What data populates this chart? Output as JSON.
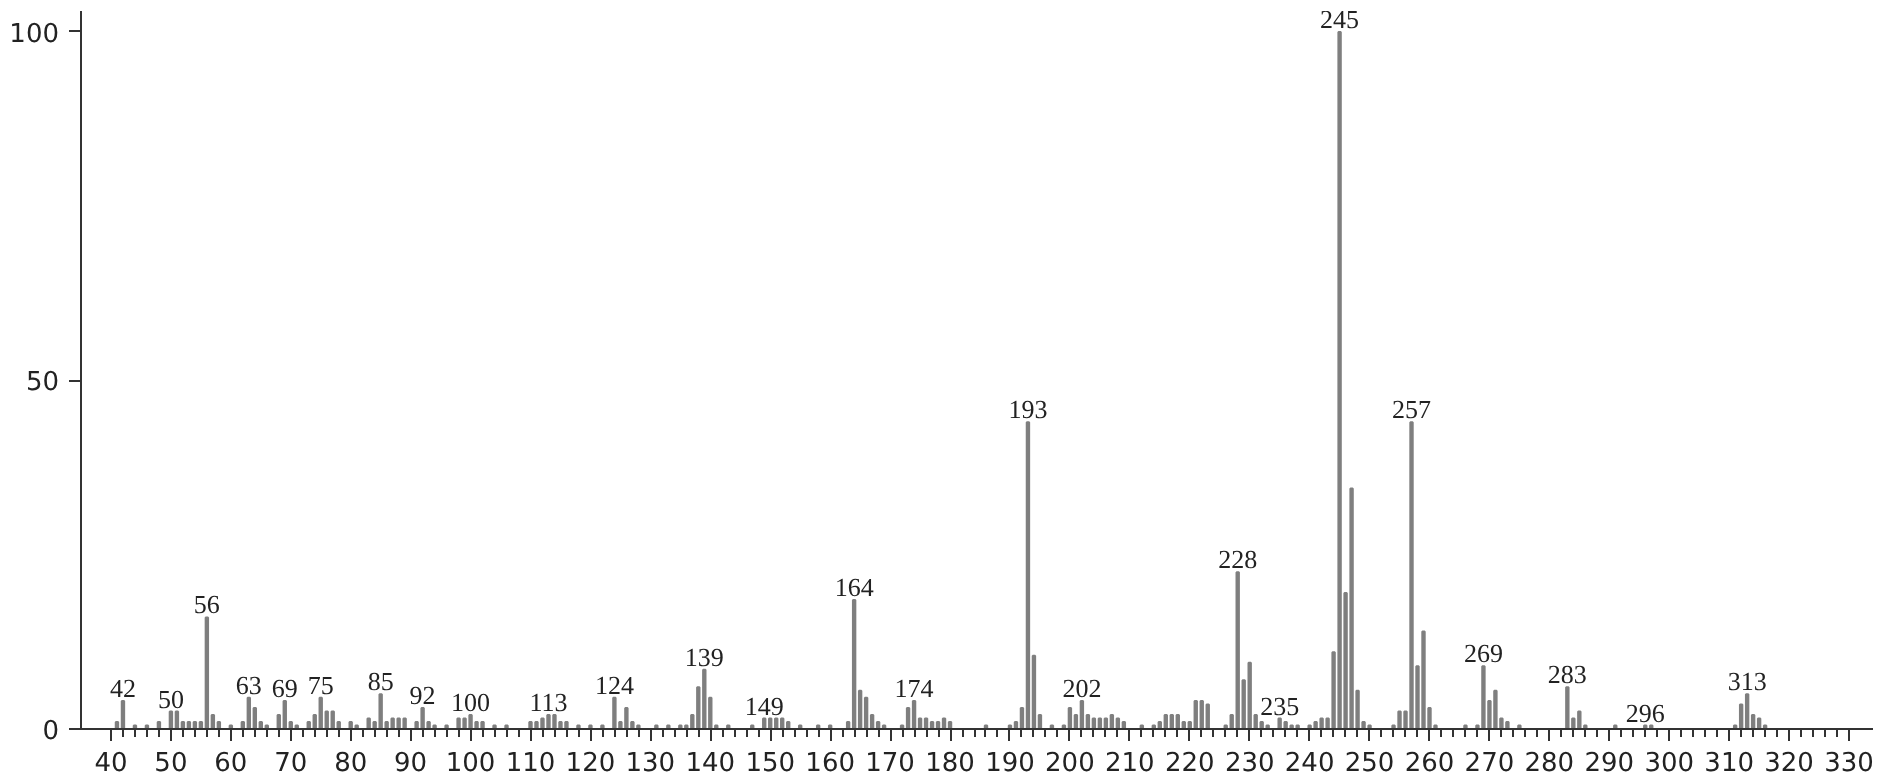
{
  "chart_data": {
    "type": "bar",
    "color": "#7f7f7f",
    "x": [
      41,
      42,
      44,
      46,
      48,
      50,
      51,
      52,
      53,
      54,
      55,
      56,
      57,
      58,
      60,
      62,
      63,
      64,
      65,
      66,
      68,
      69,
      70,
      71,
      73,
      74,
      75,
      76,
      77,
      78,
      80,
      81,
      83,
      84,
      85,
      86,
      87,
      88,
      89,
      91,
      92,
      93,
      94,
      96,
      98,
      99,
      100,
      101,
      102,
      104,
      106,
      110,
      111,
      112,
      113,
      114,
      115,
      116,
      118,
      120,
      122,
      124,
      125,
      126,
      127,
      128,
      131,
      133,
      135,
      136,
      137,
      138,
      139,
      140,
      141,
      143,
      147,
      149,
      150,
      151,
      152,
      153,
      155,
      158,
      160,
      163,
      164,
      165,
      166,
      167,
      168,
      169,
      172,
      173,
      174,
      175,
      176,
      177,
      178,
      179,
      180,
      186,
      190,
      191,
      192,
      193,
      194,
      195,
      197,
      199,
      200,
      201,
      202,
      203,
      204,
      205,
      206,
      207,
      208,
      209,
      212,
      214,
      215,
      216,
      217,
      218,
      219,
      220,
      221,
      222,
      223,
      226,
      227,
      228,
      229,
      230,
      231,
      232,
      233,
      235,
      236,
      237,
      238,
      240,
      241,
      242,
      243,
      244,
      245,
      246,
      247,
      248,
      249,
      250,
      254,
      255,
      256,
      257,
      258,
      259,
      260,
      261,
      266,
      268,
      269,
      270,
      271,
      272,
      273,
      275,
      283,
      284,
      285,
      286,
      291,
      296,
      297,
      311,
      312,
      313,
      314,
      315,
      316
    ],
    "values": [
      1,
      4,
      0.5,
      0.5,
      1,
      2.5,
      2.5,
      1,
      1,
      1,
      1,
      16,
      2,
      1,
      0.5,
      1,
      4.5,
      3,
      1,
      0.5,
      2,
      4,
      1,
      0.5,
      1,
      2,
      4.5,
      2.5,
      2.5,
      1,
      1,
      0.5,
      1.5,
      1,
      5,
      1,
      1.5,
      1.5,
      1.5,
      1,
      3,
      1,
      0.5,
      0.5,
      1.5,
      1.5,
      2,
      1,
      1,
      0.5,
      0.5,
      1,
      1,
      1.5,
      2,
      2,
      1,
      1,
      0.5,
      0.5,
      0.5,
      4.5,
      1,
      3,
      1,
      0.5,
      0.5,
      0.5,
      0.5,
      0.5,
      2,
      6,
      8.5,
      4.5,
      0.5,
      0.5,
      0.5,
      1.5,
      1.5,
      1.5,
      1.5,
      1,
      0.5,
      0.5,
      0.5,
      1,
      18.5,
      5.5,
      4.5,
      2,
      1,
      0.5,
      0.5,
      3,
      4,
      1.5,
      1.5,
      1,
      1,
      1.5,
      1,
      0.5,
      0.5,
      1,
      3,
      44,
      10.5,
      2,
      0.5,
      0.5,
      3,
      2,
      4,
      2,
      1.5,
      1.5,
      1.5,
      2,
      1.5,
      1,
      0.5,
      0.5,
      1,
      2,
      2,
      2,
      1,
      1,
      4,
      4,
      3.5,
      0.5,
      2,
      22.5,
      7,
      9.5,
      2,
      1,
      0.5,
      1.5,
      1,
      0.5,
      0.5,
      0.5,
      1,
      1.5,
      1.5,
      11,
      100,
      19.5,
      34.5,
      5.5,
      1,
      0.5,
      0.5,
      2.5,
      2.5,
      44,
      9,
      14,
      3,
      0.5,
      0.5,
      0.5,
      9,
      4,
      5.5,
      1.5,
      1,
      0.5,
      6,
      1.5,
      2.5,
      0.5,
      0.5,
      0.5,
      0.5,
      0.5,
      3.5,
      5,
      2,
      1.5,
      0.5
    ],
    "xlim": [
      35,
      334
    ],
    "ylim": [
      0,
      103
    ],
    "xticks": [
      40,
      50,
      60,
      70,
      80,
      90,
      100,
      110,
      120,
      130,
      140,
      150,
      160,
      170,
      180,
      190,
      200,
      210,
      220,
      230,
      240,
      250,
      260,
      270,
      280,
      290,
      300,
      310,
      320,
      330
    ],
    "yticks": [
      0,
      50,
      100
    ],
    "grid": false,
    "annotations": [
      {
        "text": "42",
        "x": 42,
        "y": 4
      },
      {
        "text": "50",
        "x": 50,
        "y": 2.5
      },
      {
        "text": "56",
        "x": 56,
        "y": 16
      },
      {
        "text": "63",
        "x": 63,
        "y": 4.5
      },
      {
        "text": "69",
        "x": 69,
        "y": 4
      },
      {
        "text": "75",
        "x": 75,
        "y": 4.5
      },
      {
        "text": "85",
        "x": 85,
        "y": 5
      },
      {
        "text": "92",
        "x": 92,
        "y": 3
      },
      {
        "text": "100",
        "x": 100,
        "y": 2
      },
      {
        "text": "113",
        "x": 113,
        "y": 2
      },
      {
        "text": "124",
        "x": 124,
        "y": 4.5
      },
      {
        "text": "139",
        "x": 139,
        "y": 8.5
      },
      {
        "text": "149",
        "x": 149,
        "y": 1.5
      },
      {
        "text": "164",
        "x": 164,
        "y": 18.5
      },
      {
        "text": "174",
        "x": 174,
        "y": 4
      },
      {
        "text": "193",
        "x": 193,
        "y": 44
      },
      {
        "text": "202",
        "x": 202,
        "y": 4
      },
      {
        "text": "228",
        "x": 228,
        "y": 22.5
      },
      {
        "text": "235",
        "x": 235,
        "y": 1.5
      },
      {
        "text": "245",
        "x": 245,
        "y": 100
      },
      {
        "text": "257",
        "x": 257,
        "y": 44
      },
      {
        "text": "269",
        "x": 269,
        "y": 9
      },
      {
        "text": "283",
        "x": 283,
        "y": 6
      },
      {
        "text": "296",
        "x": 296,
        "y": 0.5
      },
      {
        "text": "313",
        "x": 313,
        "y": 5
      }
    ]
  }
}
